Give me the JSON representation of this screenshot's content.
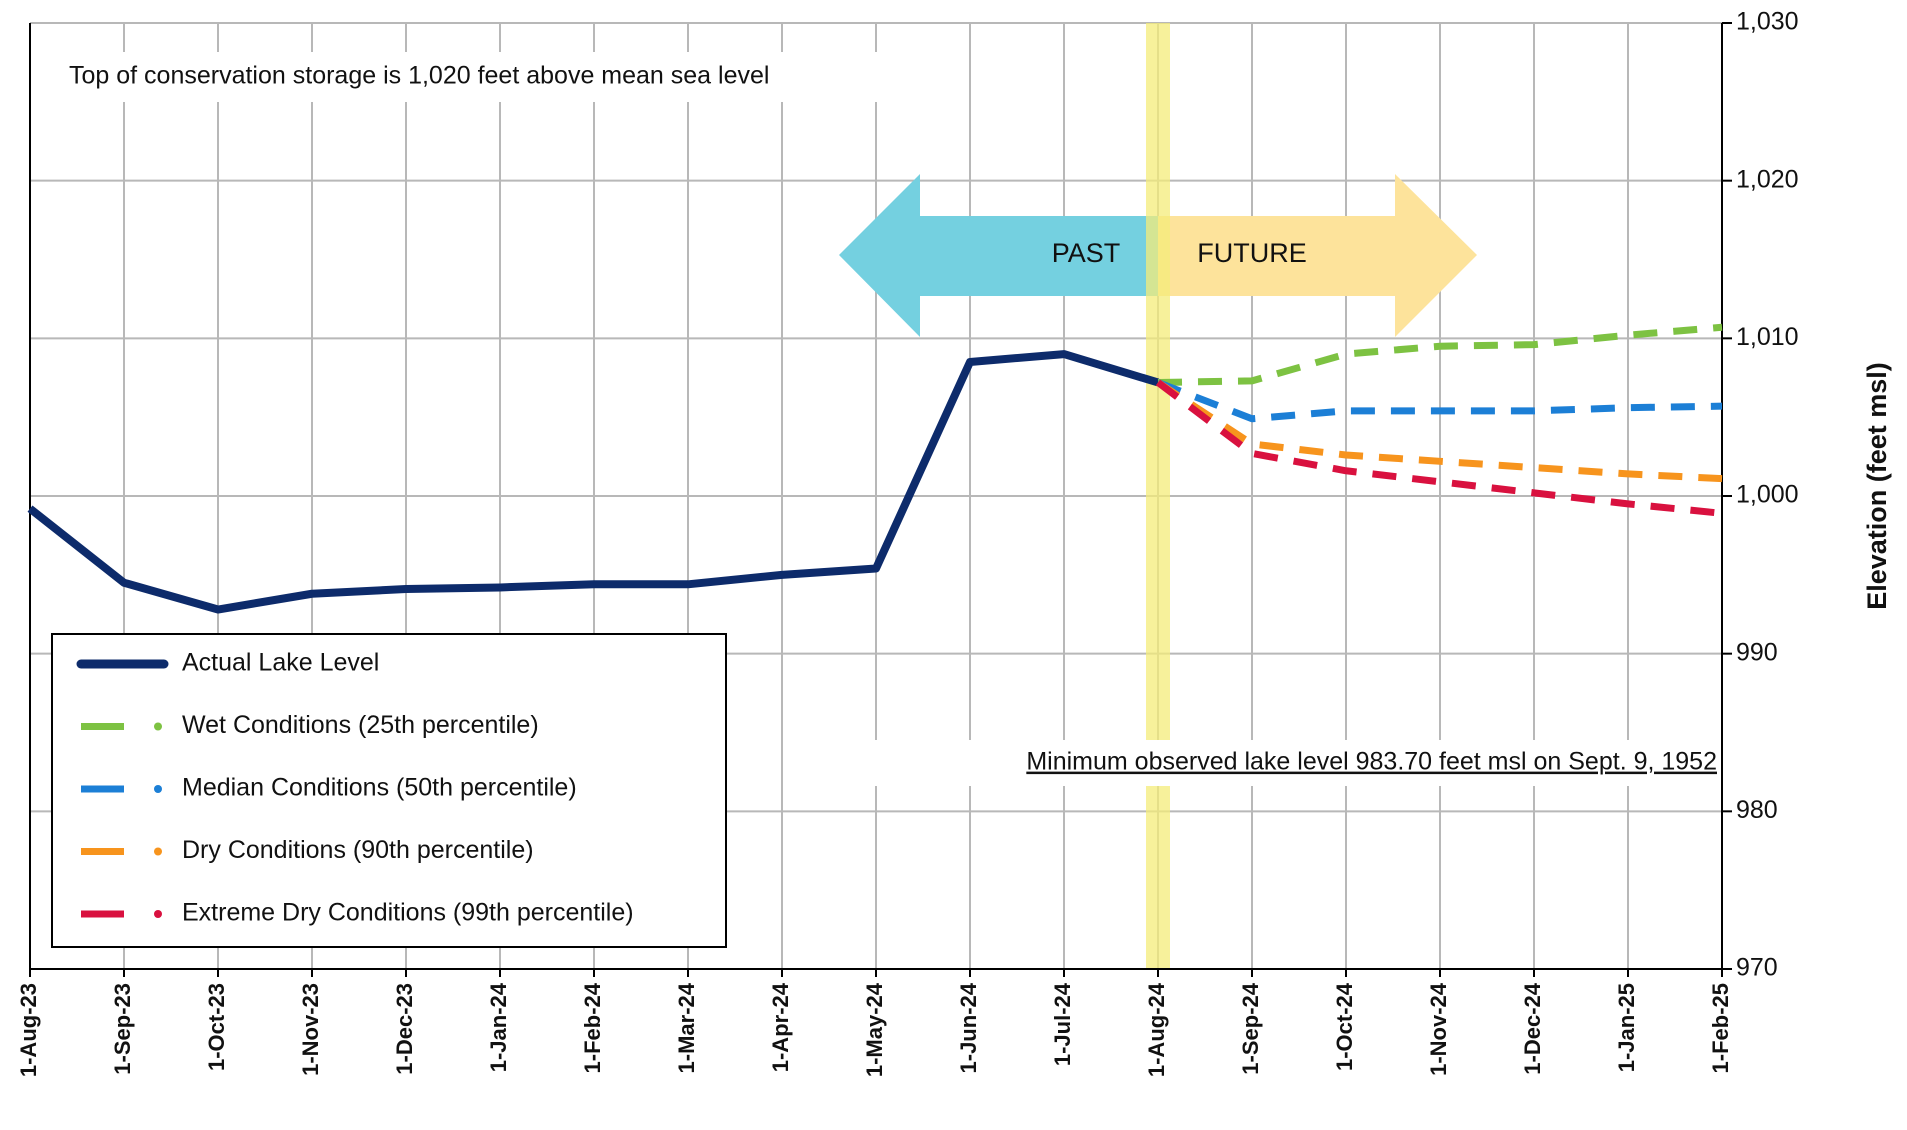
{
  "chart_data": {
    "type": "line",
    "annotation_top": "Top of conservation storage is 1,020 feet above mean sea level",
    "annotation_past": "PAST",
    "annotation_future": "FUTURE",
    "annotation_minimum": "Minimum observed lake level 983.70 feet msl on Sept. 9, 1952",
    "y_label": "Elevation (feet msl)",
    "categories": [
      "1-Aug-23",
      "1-Sep-23",
      "1-Oct-23",
      "1-Nov-23",
      "1-Dec-23",
      "1-Jan-24",
      "1-Feb-24",
      "1-Mar-24",
      "1-Apr-24",
      "1-May-24",
      "1-Jun-24",
      "1-Jul-24",
      "1-Aug-24",
      "1-Sep-24",
      "1-Oct-24",
      "1-Nov-24",
      "1-Dec-24",
      "1-Jan-25",
      "1-Feb-25"
    ],
    "series": [
      {
        "name": "Actual Lake Level",
        "color": "#0d2b6b",
        "dashed": false,
        "values": [
          999.2,
          994.5,
          992.8,
          993.8,
          994.1,
          994.2,
          994.4,
          994.4,
          995.0,
          995.4,
          1008.5,
          1009.0,
          1007.2,
          null,
          null,
          null,
          null,
          null,
          null
        ]
      },
      {
        "name": "Wet Conditions (25th percentile)",
        "color": "#7dc242",
        "dashed": true,
        "values": [
          null,
          null,
          null,
          null,
          null,
          null,
          null,
          null,
          null,
          null,
          null,
          null,
          1007.2,
          1007.3,
          1009.0,
          1009.5,
          1009.6,
          1010.2,
          1010.7
        ]
      },
      {
        "name": "Median Conditions (50th percentile)",
        "color": "#1c7fd6",
        "dashed": true,
        "values": [
          null,
          null,
          null,
          null,
          null,
          null,
          null,
          null,
          null,
          null,
          null,
          null,
          1007.2,
          1004.9,
          1005.4,
          1005.4,
          1005.4,
          1005.6,
          1005.7
        ]
      },
      {
        "name": "Dry Conditions (90th percentile)",
        "color": "#f7941d",
        "dashed": true,
        "values": [
          null,
          null,
          null,
          null,
          null,
          null,
          null,
          null,
          null,
          null,
          null,
          null,
          1007.2,
          1003.3,
          1002.6,
          1002.2,
          1001.8,
          1001.4,
          1001.1
        ]
      },
      {
        "name": "Extreme Dry Conditions (99th percentile)",
        "color": "#d9113f",
        "dashed": true,
        "values": [
          null,
          null,
          null,
          null,
          null,
          null,
          null,
          null,
          null,
          null,
          null,
          null,
          1007.2,
          1002.7,
          1001.6,
          1000.9,
          1000.2,
          999.5,
          998.9
        ]
      }
    ],
    "ylim": [
      970,
      1030
    ],
    "yticks": [
      970,
      980,
      990,
      {
        "value": 1000,
        "label": "1,000"
      },
      {
        "value": 1010,
        "label": "1,010"
      },
      {
        "value": 1020,
        "label": "1,020"
      },
      {
        "value": 1030,
        "label": "1,030"
      }
    ],
    "y_axis_side": "right",
    "grid": true,
    "legend_position": "lower-left"
  }
}
